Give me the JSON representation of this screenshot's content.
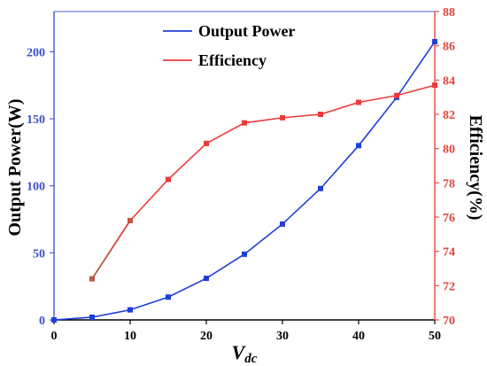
{
  "chart_data": {
    "type": "line",
    "x": [
      0,
      5,
      10,
      15,
      20,
      25,
      30,
      35,
      40,
      45,
      50
    ],
    "xlabel": {
      "main": "V",
      "sub": "dc"
    },
    "ylabel_left": "Output Power(W)",
    "ylabel_right": "Efficiency(%)",
    "xlim": [
      0,
      50
    ],
    "ylim_left": [
      0,
      230
    ],
    "ylim_right": [
      70,
      88
    ],
    "x_ticks": [
      0,
      10,
      20,
      30,
      40,
      50
    ],
    "y_ticks_left": [
      0,
      50,
      100,
      150,
      200
    ],
    "y_ticks_right": [
      70,
      72,
      74,
      76,
      78,
      80,
      82,
      84,
      86,
      88
    ],
    "legend_position": "top-center",
    "grid": false,
    "series": [
      {
        "name": "Output Power",
        "axis": "left",
        "color": "#1f3fd8",
        "x": [
          0,
          5,
          10,
          15,
          20,
          25,
          30,
          35,
          40,
          45,
          50
        ],
        "values": [
          0,
          2,
          7.5,
          17,
          31,
          49,
          71.5,
          98,
          130,
          166,
          207.5
        ]
      },
      {
        "name": "Efficiency",
        "axis": "right",
        "color": "#f0393a",
        "start_color": "#a0683e",
        "x": [
          5,
          10,
          15,
          20,
          25,
          30,
          35,
          40,
          45,
          50
        ],
        "values": [
          72.4,
          75.8,
          78.2,
          80.3,
          81.5,
          81.8,
          82.0,
          82.7,
          83.1,
          83.7
        ]
      }
    ]
  }
}
